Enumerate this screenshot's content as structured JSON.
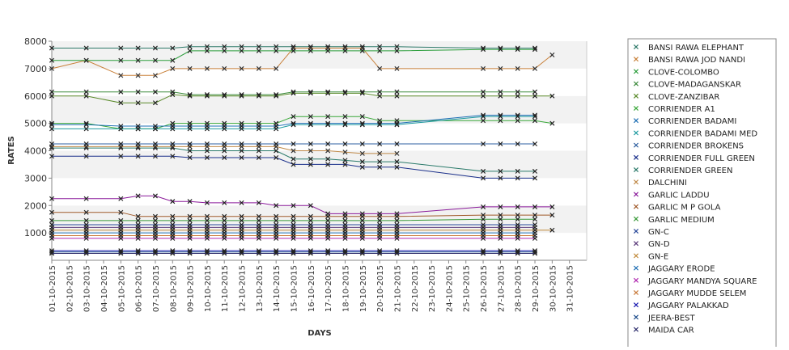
{
  "chart_data": {
    "type": "line",
    "title": "",
    "xlabel": "DAYS",
    "ylabel": "RATES",
    "ylim": [
      0,
      8000
    ],
    "yticks": [
      1000,
      2000,
      3000,
      4000,
      5000,
      6000,
      7000,
      8000
    ],
    "grid": "alternating horizontal bands",
    "legend_position": "right",
    "categories": [
      "01-10-2015",
      "02-10-2015",
      "03-10-2015",
      "04-10-2015",
      "05-10-2015",
      "06-10-2015",
      "07-10-2015",
      "08-10-2015",
      "09-10-2015",
      "10-10-2015",
      "11-10-2015",
      "12-10-2015",
      "13-10-2015",
      "14-10-2015",
      "15-10-2015",
      "16-10-2015",
      "17-10-2015",
      "18-10-2015",
      "19-10-2015",
      "20-10-2015",
      "21-10-2015",
      "22-10-2015",
      "23-10-2015",
      "24-10-2015",
      "25-10-2015",
      "26-10-2015",
      "27-10-2015",
      "28-10-2015",
      "29-10-2015",
      "30-10-2015",
      "31-10-2015"
    ],
    "series": [
      {
        "name": "BANSI RAWA ELEPHANT",
        "color": "#2f7a6a",
        "values": [
          7750,
          null,
          7750,
          null,
          7750,
          7750,
          7750,
          7750,
          7800,
          7800,
          7800,
          7800,
          7800,
          7800,
          7800,
          7800,
          7800,
          7800,
          7800,
          7800,
          7800,
          null,
          null,
          null,
          null,
          7750,
          7750,
          7750,
          7750,
          null,
          null
        ]
      },
      {
        "name": "BANSI RAWA JOD NANDI",
        "color": "#c8803a",
        "values": [
          7000,
          null,
          7300,
          null,
          6750,
          6750,
          6750,
          7000,
          7000,
          7000,
          7000,
          7000,
          7000,
          7000,
          7750,
          7750,
          7750,
          7750,
          7750,
          7000,
          7000,
          null,
          null,
          null,
          null,
          7000,
          7000,
          7000,
          7000,
          7500,
          null
        ]
      },
      {
        "name": "CLOVE-COLOMBO",
        "color": "#2a9d3a",
        "values": [
          7300,
          null,
          7300,
          null,
          7300,
          7300,
          7300,
          7300,
          7650,
          7650,
          7650,
          7650,
          7650,
          7650,
          7650,
          7650,
          7650,
          7650,
          7650,
          7650,
          7650,
          null,
          null,
          null,
          null,
          7700,
          7700,
          7700,
          7700,
          null,
          null
        ]
      },
      {
        "name": "CLOVE-MADAGANSKAR",
        "color": "#3c8a3c",
        "values": [
          6150,
          null,
          6150,
          null,
          6150,
          6150,
          6150,
          6150,
          6050,
          6050,
          6050,
          6050,
          6050,
          6050,
          6150,
          6150,
          6150,
          6150,
          6150,
          6150,
          6150,
          null,
          null,
          null,
          null,
          6150,
          6150,
          6150,
          6150,
          null,
          null
        ]
      },
      {
        "name": "CLOVE-ZANZIBAR",
        "color": "#5a8a2a",
        "values": [
          6000,
          null,
          6000,
          null,
          5750,
          5750,
          5750,
          6050,
          6000,
          6000,
          6000,
          6000,
          6000,
          6000,
          6100,
          6100,
          6100,
          6100,
          6100,
          6000,
          6000,
          null,
          null,
          null,
          null,
          6000,
          6000,
          6000,
          6000,
          6000,
          null
        ]
      },
      {
        "name": "CORRIENDER A1",
        "color": "#3aa83a",
        "values": [
          5000,
          null,
          5000,
          null,
          4800,
          4800,
          4800,
          5000,
          5000,
          5000,
          5000,
          5000,
          5000,
          5000,
          5250,
          5250,
          5250,
          5250,
          5250,
          5100,
          5100,
          null,
          null,
          null,
          null,
          5100,
          5100,
          5100,
          5100,
          5000,
          null
        ]
      },
      {
        "name": "CORRIENDER BADAMI",
        "color": "#1f6fb4",
        "values": [
          4950,
          null,
          4950,
          null,
          4900,
          4900,
          4900,
          4900,
          4900,
          4900,
          4900,
          4900,
          4900,
          4900,
          5000,
          5000,
          5000,
          5000,
          5000,
          5000,
          5000,
          null,
          null,
          null,
          null,
          5300,
          5300,
          5300,
          5300,
          null,
          null
        ]
      },
      {
        "name": "CORRIENDER BADAMI MED",
        "color": "#1e9aa0",
        "values": [
          4800,
          null,
          4800,
          null,
          4800,
          4800,
          4800,
          4800,
          4800,
          4800,
          4800,
          4800,
          4800,
          4800,
          4950,
          4950,
          4950,
          4950,
          4950,
          4950,
          4950,
          null,
          null,
          null,
          null,
          5250,
          5250,
          5250,
          5250,
          null,
          null
        ]
      },
      {
        "name": "CORRIENDER BROKENS",
        "color": "#2d5fa0",
        "values": [
          4250,
          null,
          4250,
          null,
          4250,
          4250,
          4250,
          4250,
          4250,
          4250,
          4250,
          4250,
          4250,
          4250,
          4250,
          4250,
          4250,
          4250,
          4250,
          4250,
          4250,
          null,
          null,
          null,
          null,
          4250,
          4250,
          4250,
          4250,
          null,
          null
        ]
      },
      {
        "name": "CORRIENDER FULL GREEN",
        "color": "#1a2f8a",
        "values": [
          3800,
          null,
          3800,
          null,
          3800,
          3800,
          3800,
          3800,
          3750,
          3750,
          3750,
          3750,
          3750,
          3750,
          3500,
          3500,
          3500,
          3500,
          3400,
          3400,
          3400,
          null,
          null,
          null,
          null,
          3000,
          3000,
          3000,
          3000,
          null,
          null
        ]
      },
      {
        "name": "CORRIENDER GREEN",
        "color": "#2a7a6a",
        "values": [
          4100,
          null,
          4100,
          null,
          4100,
          4100,
          4100,
          4100,
          4000,
          4000,
          4000,
          4000,
          4000,
          4000,
          3700,
          3700,
          3700,
          3650,
          3600,
          3600,
          3600,
          null,
          null,
          null,
          null,
          3250,
          3250,
          3250,
          3250,
          null,
          null
        ]
      },
      {
        "name": "DALCHINI",
        "color": "#c08a4a",
        "values": [
          4150,
          null,
          4150,
          null,
          4150,
          4150,
          4150,
          4150,
          4150,
          4150,
          4150,
          4150,
          4150,
          4150,
          4000,
          4000,
          4000,
          3950,
          3900,
          3900,
          3900,
          null,
          null,
          null,
          null,
          null,
          null,
          null,
          null,
          null,
          null
        ]
      },
      {
        "name": "GARLIC LADDU",
        "color": "#8a1a9a",
        "values": [
          2250,
          null,
          2250,
          null,
          2250,
          2350,
          2350,
          2150,
          2150,
          2100,
          2100,
          2100,
          2100,
          2000,
          2000,
          2000,
          1700,
          1700,
          1700,
          1700,
          1700,
          null,
          null,
          null,
          null,
          1950,
          1950,
          1950,
          1950,
          1950,
          null
        ]
      },
      {
        "name": "GARLIC M P GOLA",
        "color": "#a05a2a",
        "values": [
          1750,
          null,
          1750,
          null,
          1750,
          1600,
          1600,
          1600,
          1600,
          1600,
          1600,
          1600,
          1600,
          1600,
          1600,
          1600,
          1600,
          1600,
          1600,
          1600,
          1600,
          null,
          null,
          null,
          null,
          1650,
          1650,
          1650,
          1650,
          1650,
          null
        ]
      },
      {
        "name": "GARLIC MEDIUM",
        "color": "#3a9a3a",
        "values": [
          1450,
          null,
          1450,
          null,
          1450,
          1450,
          1450,
          1450,
          1450,
          1450,
          1450,
          1450,
          1450,
          1450,
          1450,
          1450,
          1450,
          1450,
          1450,
          1450,
          1450,
          null,
          null,
          null,
          null,
          1500,
          1500,
          1500,
          1500,
          null,
          null
        ]
      },
      {
        "name": "GN-C",
        "color": "#2a4a9a",
        "values": [
          1300,
          null,
          1300,
          null,
          1300,
          1300,
          1300,
          1300,
          1300,
          1300,
          1300,
          1300,
          1300,
          1300,
          1300,
          1300,
          1300,
          1300,
          1300,
          1300,
          1300,
          null,
          null,
          null,
          null,
          1300,
          1300,
          1300,
          1300,
          null,
          null
        ]
      },
      {
        "name": "GN-D",
        "color": "#5a3a7a",
        "values": [
          1200,
          null,
          1200,
          null,
          1200,
          1200,
          1200,
          1200,
          1200,
          1200,
          1200,
          1200,
          1200,
          1200,
          1200,
          1200,
          1200,
          1200,
          1200,
          1200,
          1200,
          null,
          null,
          null,
          null,
          1200,
          1200,
          1200,
          1200,
          null,
          null
        ]
      },
      {
        "name": "GN-E",
        "color": "#c08a3a",
        "values": [
          1100,
          null,
          1100,
          null,
          1100,
          1100,
          1100,
          1100,
          1100,
          1100,
          1100,
          1100,
          1100,
          1100,
          1100,
          1100,
          1100,
          1100,
          1100,
          1100,
          1100,
          null,
          null,
          null,
          null,
          1100,
          1100,
          1100,
          1100,
          1100,
          null
        ]
      },
      {
        "name": "JAGGARY ERODE",
        "color": "#1f6fb4",
        "values": [
          1000,
          null,
          1000,
          null,
          1000,
          1000,
          1000,
          1000,
          1000,
          1000,
          1000,
          1000,
          1000,
          1000,
          1000,
          1000,
          1000,
          1000,
          1000,
          1000,
          1000,
          null,
          null,
          null,
          null,
          1000,
          1000,
          1000,
          1000,
          null,
          null
        ]
      },
      {
        "name": "JAGGARY MANDYA SQUARE",
        "color": "#b02ab0",
        "values": [
          800,
          null,
          800,
          null,
          800,
          800,
          800,
          800,
          800,
          800,
          800,
          800,
          800,
          800,
          800,
          800,
          800,
          800,
          800,
          800,
          800,
          null,
          null,
          null,
          null,
          800,
          800,
          800,
          800,
          null,
          null
        ]
      },
      {
        "name": "JAGGARY MUDDE SELEM",
        "color": "#c87a3a",
        "values": [
          900,
          null,
          900,
          null,
          900,
          900,
          900,
          900,
          900,
          900,
          900,
          900,
          900,
          900,
          900,
          900,
          900,
          900,
          900,
          900,
          900,
          null,
          null,
          null,
          null,
          900,
          900,
          900,
          900,
          null,
          null
        ]
      },
      {
        "name": "JAGGARY PALAKKAD",
        "color": "#1a1ab0",
        "values": [
          350,
          null,
          350,
          null,
          350,
          350,
          350,
          350,
          350,
          350,
          350,
          350,
          350,
          350,
          350,
          350,
          350,
          350,
          350,
          350,
          350,
          null,
          null,
          null,
          null,
          350,
          350,
          350,
          350,
          null,
          null
        ]
      },
      {
        "name": "JEERA-BEST",
        "color": "#1a4a8a",
        "values": [
          300,
          null,
          300,
          null,
          300,
          300,
          300,
          300,
          300,
          300,
          300,
          300,
          300,
          300,
          300,
          300,
          300,
          300,
          300,
          300,
          300,
          null,
          null,
          null,
          null,
          300,
          300,
          300,
          300,
          null,
          null
        ]
      },
      {
        "name": "MAIDA CAR",
        "color": "#2a2a6a",
        "values": [
          250,
          null,
          250,
          null,
          250,
          250,
          250,
          250,
          250,
          250,
          250,
          250,
          250,
          250,
          250,
          250,
          250,
          250,
          250,
          250,
          250,
          null,
          null,
          null,
          null,
          250,
          250,
          250,
          250,
          null,
          null
        ]
      }
    ]
  }
}
